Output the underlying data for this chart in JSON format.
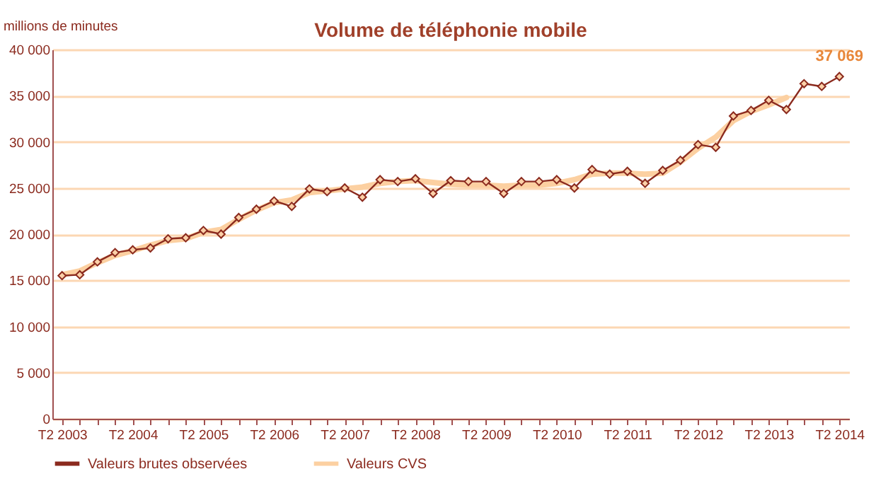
{
  "chart_data": {
    "type": "line",
    "title": "Volume de téléphonie mobile",
    "ylabel": "millions de minutes",
    "categories": [
      "T2 2003",
      null,
      null,
      null,
      "T2 2004",
      null,
      null,
      null,
      "T2 2005",
      null,
      null,
      null,
      "T2 2006",
      null,
      null,
      null,
      "T2 2007",
      null,
      null,
      null,
      "T2 2008",
      null,
      null,
      null,
      "T2 2009",
      null,
      null,
      null,
      "T2 2010",
      null,
      null,
      null,
      "T2 2011",
      null,
      null,
      null,
      "T2 2012",
      null,
      null,
      null,
      "T2 2013",
      null,
      null,
      null,
      "T2 2014"
    ],
    "series": [
      {
        "name": "Valeurs brutes observées",
        "color": "#8b2a1e",
        "marker": "diamond",
        "values": [
          15500,
          15600,
          17000,
          18000,
          18300,
          18500,
          19500,
          19600,
          20400,
          20000,
          21800,
          22700,
          23600,
          23000,
          24900,
          24600,
          25000,
          24000,
          25900,
          25700,
          26000,
          24400,
          25800,
          25700,
          25700,
          24400,
          25700,
          25700,
          25900,
          25000,
          27000,
          26500,
          26800,
          25500,
          26900,
          28000,
          29700,
          29400,
          32800,
          33400,
          34500,
          33500,
          36300,
          36000,
          37069
        ],
        "value_labels": [
          null,
          null,
          null,
          null,
          null,
          null,
          null,
          null,
          null,
          null,
          null,
          null,
          null,
          null,
          null,
          null,
          null,
          null,
          null,
          null,
          null,
          null,
          null,
          null,
          null,
          null,
          null,
          null,
          null,
          null,
          null,
          null,
          null,
          null,
          null,
          null,
          null,
          null,
          null,
          null,
          null,
          null,
          null,
          null,
          "37 069"
        ]
      },
      {
        "name": "Valeurs CVS",
        "color": "#fcd0a1",
        "marker": "none",
        "values": [
          15600,
          16000,
          16900,
          17700,
          18200,
          18800,
          19300,
          19500,
          20200,
          20500,
          21600,
          22600,
          23400,
          23700,
          24500,
          24700,
          24900,
          25100,
          25500,
          25700,
          25800,
          25600,
          25400,
          25300,
          25300,
          25200,
          25300,
          25300,
          25500,
          25900,
          26500,
          26600,
          26600,
          26500,
          26600,
          27800,
          29300,
          30500,
          32300,
          33300,
          34000,
          34800,
          null,
          null,
          null
        ]
      }
    ],
    "ylim": [
      0,
      40000
    ],
    "yticks": [
      {
        "value": 0,
        "label": "0"
      },
      {
        "value": 5000,
        "label": "5 000"
      },
      {
        "value": 10000,
        "label": "10 000"
      },
      {
        "value": 15000,
        "label": "15 000"
      },
      {
        "value": 20000,
        "label": "20 000"
      },
      {
        "value": 25000,
        "label": "25 000"
      },
      {
        "value": 30000,
        "label": "30 000"
      },
      {
        "value": 35000,
        "label": "35 000"
      },
      {
        "value": 40000,
        "label": "40 000"
      }
    ],
    "grid": "y",
    "legend": "bottom"
  }
}
